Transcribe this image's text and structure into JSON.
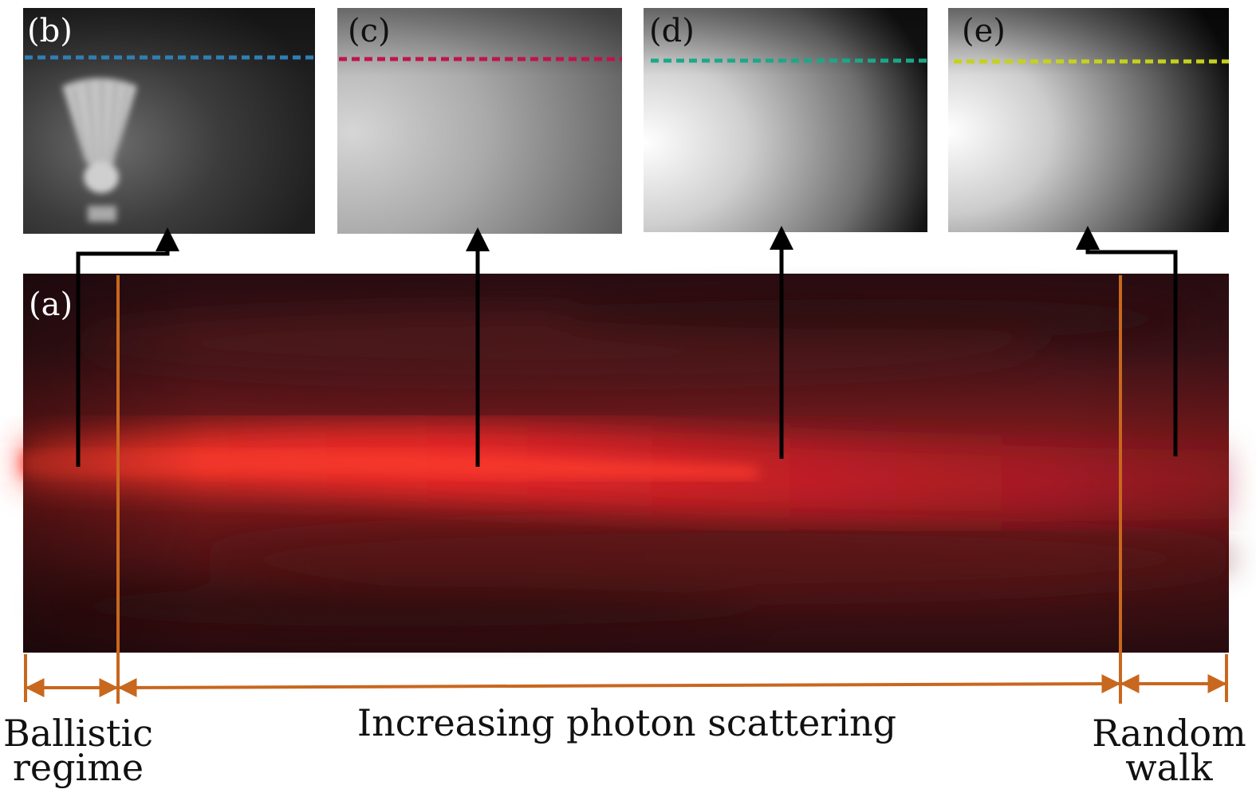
{
  "panels": {
    "a": {
      "label": "(a)"
    },
    "b": {
      "label": "(b)",
      "line_color": "#2f7fb4"
    },
    "c": {
      "label": "(c)",
      "line_color": "#c0144a"
    },
    "d": {
      "label": "(d)",
      "line_color": "#1aa88a"
    },
    "e": {
      "label": "(e)",
      "line_color": "#c4d21c"
    }
  },
  "regimes": {
    "ballistic_line1": "Ballistic",
    "ballistic_line2": "regime",
    "scattering": "Increasing photon scattering",
    "random_line1": "Random",
    "random_line2": "walk"
  },
  "colors": {
    "marker": "#c8671e",
    "arrow": "#000000"
  }
}
